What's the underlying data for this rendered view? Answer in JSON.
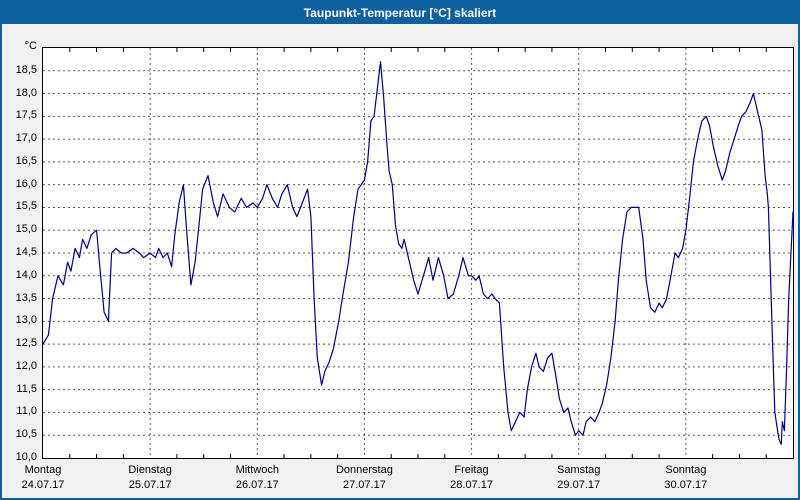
{
  "window": {
    "title": "Taupunkt-Temperatur [°C] skaliert"
  },
  "colors": {
    "titlebar": "#0e5f9e",
    "window_border": "#0e5f9e",
    "window_bg": "#f1f1f1",
    "plot_bg": "#ffffff",
    "plot_border": "#000000",
    "grid": "#5a5a5a",
    "line": "#000080"
  },
  "chart_data": {
    "type": "line",
    "title": "Taupunkt-Temperatur [°C] skaliert",
    "xlabel": "",
    "ylabel": "°C",
    "ylim": [
      10.0,
      19.0
    ],
    "x_range_days": [
      0,
      7
    ],
    "grid": true,
    "legend": "none",
    "y_ticks": [
      {
        "v": 18.5,
        "label": "18,5"
      },
      {
        "v": 18.0,
        "label": "18,0"
      },
      {
        "v": 17.5,
        "label": "17,5"
      },
      {
        "v": 17.0,
        "label": "17,0"
      },
      {
        "v": 16.5,
        "label": "16,5"
      },
      {
        "v": 16.0,
        "label": "16,0"
      },
      {
        "v": 15.5,
        "label": "15,5"
      },
      {
        "v": 15.0,
        "label": "15,0"
      },
      {
        "v": 14.5,
        "label": "14,5"
      },
      {
        "v": 14.0,
        "label": "14,0"
      },
      {
        "v": 13.5,
        "label": "13,5"
      },
      {
        "v": 13.0,
        "label": "13,0"
      },
      {
        "v": 12.5,
        "label": "12,5"
      },
      {
        "v": 12.0,
        "label": "12,0"
      },
      {
        "v": 11.5,
        "label": "11,5"
      },
      {
        "v": 11.0,
        "label": "11,0"
      },
      {
        "v": 10.5,
        "label": "10,5"
      },
      {
        "v": 10.0,
        "label": "10,0"
      }
    ],
    "x_days": [
      {
        "day": "Montag",
        "date": "24.07.17"
      },
      {
        "day": "Dienstag",
        "date": "25.07.17"
      },
      {
        "day": "Mittwoch",
        "date": "26.07.17"
      },
      {
        "day": "Donnerstag",
        "date": "27.07.17"
      },
      {
        "day": "Freitag",
        "date": "28.07.17"
      },
      {
        "day": "Samstag",
        "date": "29.07.17"
      },
      {
        "day": "Sonntag",
        "date": "30.07.17"
      }
    ],
    "series": [
      {
        "name": "Taupunkt-Temperatur",
        "color": "#000080",
        "points": [
          [
            0.0,
            12.5
          ],
          [
            0.05,
            12.7
          ],
          [
            0.09,
            13.5
          ],
          [
            0.14,
            14.0
          ],
          [
            0.19,
            13.8
          ],
          [
            0.23,
            14.3
          ],
          [
            0.26,
            14.1
          ],
          [
            0.3,
            14.6
          ],
          [
            0.34,
            14.4
          ],
          [
            0.37,
            14.8
          ],
          [
            0.41,
            14.6
          ],
          [
            0.45,
            14.9
          ],
          [
            0.5,
            15.0
          ],
          [
            0.53,
            14.2
          ],
          [
            0.57,
            13.2
          ],
          [
            0.61,
            13.0
          ],
          [
            0.64,
            14.5
          ],
          [
            0.68,
            14.6
          ],
          [
            0.73,
            14.5
          ],
          [
            0.78,
            14.5
          ],
          [
            0.84,
            14.6
          ],
          [
            0.9,
            14.5
          ],
          [
            0.94,
            14.4
          ],
          [
            1.0,
            14.5
          ],
          [
            1.05,
            14.4
          ],
          [
            1.08,
            14.6
          ],
          [
            1.12,
            14.4
          ],
          [
            1.16,
            14.5
          ],
          [
            1.2,
            14.2
          ],
          [
            1.23,
            14.9
          ],
          [
            1.27,
            15.6
          ],
          [
            1.31,
            16.0
          ],
          [
            1.34,
            15.0
          ],
          [
            1.38,
            13.8
          ],
          [
            1.42,
            14.3
          ],
          [
            1.46,
            15.2
          ],
          [
            1.49,
            15.9
          ],
          [
            1.54,
            16.2
          ],
          [
            1.59,
            15.6
          ],
          [
            1.63,
            15.3
          ],
          [
            1.68,
            15.8
          ],
          [
            1.74,
            15.5
          ],
          [
            1.79,
            15.4
          ],
          [
            1.85,
            15.7
          ],
          [
            1.9,
            15.5
          ],
          [
            1.96,
            15.6
          ],
          [
            2.0,
            15.5
          ],
          [
            2.05,
            15.7
          ],
          [
            2.09,
            16.0
          ],
          [
            2.14,
            15.7
          ],
          [
            2.19,
            15.5
          ],
          [
            2.23,
            15.8
          ],
          [
            2.28,
            16.0
          ],
          [
            2.33,
            15.5
          ],
          [
            2.37,
            15.3
          ],
          [
            2.42,
            15.6
          ],
          [
            2.47,
            15.9
          ],
          [
            2.5,
            15.3
          ],
          [
            2.53,
            13.5
          ],
          [
            2.56,
            12.2
          ],
          [
            2.6,
            11.6
          ],
          [
            2.63,
            11.9
          ],
          [
            2.67,
            12.1
          ],
          [
            2.71,
            12.4
          ],
          [
            2.76,
            13.0
          ],
          [
            2.8,
            13.6
          ],
          [
            2.85,
            14.3
          ],
          [
            2.9,
            15.3
          ],
          [
            2.94,
            15.9
          ],
          [
            2.97,
            16.0
          ],
          [
            3.0,
            16.1
          ],
          [
            3.03,
            16.5
          ],
          [
            3.06,
            17.4
          ],
          [
            3.09,
            17.5
          ],
          [
            3.12,
            18.1
          ],
          [
            3.15,
            18.7
          ],
          [
            3.18,
            17.9
          ],
          [
            3.21,
            16.9
          ],
          [
            3.23,
            16.3
          ],
          [
            3.26,
            16.0
          ],
          [
            3.29,
            15.1
          ],
          [
            3.32,
            14.7
          ],
          [
            3.35,
            14.6
          ],
          [
            3.37,
            14.8
          ],
          [
            3.41,
            14.4
          ],
          [
            3.46,
            13.9
          ],
          [
            3.5,
            13.6
          ],
          [
            3.55,
            14.0
          ],
          [
            3.6,
            14.4
          ],
          [
            3.64,
            13.9
          ],
          [
            3.69,
            14.4
          ],
          [
            3.74,
            14.0
          ],
          [
            3.78,
            13.5
          ],
          [
            3.83,
            13.6
          ],
          [
            3.88,
            14.0
          ],
          [
            3.92,
            14.4
          ],
          [
            3.97,
            14.0
          ],
          [
            4.0,
            14.0
          ],
          [
            4.04,
            13.9
          ],
          [
            4.07,
            14.0
          ],
          [
            4.11,
            13.6
          ],
          [
            4.15,
            13.5
          ],
          [
            4.19,
            13.6
          ],
          [
            4.22,
            13.5
          ],
          [
            4.26,
            13.4
          ],
          [
            4.3,
            12.0
          ],
          [
            4.34,
            11.0
          ],
          [
            4.37,
            10.6
          ],
          [
            4.41,
            10.8
          ],
          [
            4.45,
            11.0
          ],
          [
            4.49,
            10.9
          ],
          [
            4.52,
            11.5
          ],
          [
            4.56,
            12.0
          ],
          [
            4.6,
            12.3
          ],
          [
            4.63,
            12.0
          ],
          [
            4.67,
            11.9
          ],
          [
            4.71,
            12.2
          ],
          [
            4.75,
            12.3
          ],
          [
            4.78,
            11.9
          ],
          [
            4.82,
            11.3
          ],
          [
            4.86,
            11.0
          ],
          [
            4.9,
            11.1
          ],
          [
            4.93,
            10.8
          ],
          [
            4.97,
            10.5
          ],
          [
            5.0,
            10.6
          ],
          [
            5.04,
            10.5
          ],
          [
            5.07,
            10.8
          ],
          [
            5.11,
            10.9
          ],
          [
            5.15,
            10.8
          ],
          [
            5.19,
            11.0
          ],
          [
            5.22,
            11.2
          ],
          [
            5.26,
            11.6
          ],
          [
            5.3,
            12.2
          ],
          [
            5.34,
            13.0
          ],
          [
            5.37,
            13.9
          ],
          [
            5.41,
            14.8
          ],
          [
            5.45,
            15.4
          ],
          [
            5.49,
            15.5
          ],
          [
            5.52,
            15.5
          ],
          [
            5.56,
            15.5
          ],
          [
            5.6,
            14.8
          ],
          [
            5.63,
            13.9
          ],
          [
            5.67,
            13.3
          ],
          [
            5.71,
            13.2
          ],
          [
            5.75,
            13.4
          ],
          [
            5.78,
            13.3
          ],
          [
            5.82,
            13.5
          ],
          [
            5.86,
            14.0
          ],
          [
            5.9,
            14.5
          ],
          [
            5.93,
            14.4
          ],
          [
            5.97,
            14.6
          ],
          [
            6.0,
            15.0
          ],
          [
            6.04,
            15.8
          ],
          [
            6.07,
            16.5
          ],
          [
            6.11,
            17.0
          ],
          [
            6.15,
            17.4
          ],
          [
            6.19,
            17.5
          ],
          [
            6.22,
            17.3
          ],
          [
            6.26,
            16.8
          ],
          [
            6.3,
            16.4
          ],
          [
            6.34,
            16.1
          ],
          [
            6.37,
            16.3
          ],
          [
            6.41,
            16.7
          ],
          [
            6.45,
            17.0
          ],
          [
            6.49,
            17.3
          ],
          [
            6.52,
            17.5
          ],
          [
            6.56,
            17.6
          ],
          [
            6.6,
            17.8
          ],
          [
            6.63,
            18.0
          ],
          [
            6.67,
            17.6
          ],
          [
            6.71,
            17.2
          ],
          [
            6.74,
            16.2
          ],
          [
            6.76,
            15.8
          ],
          [
            6.77,
            15.5
          ],
          [
            6.79,
            14.0
          ],
          [
            6.81,
            12.5
          ],
          [
            6.83,
            11.0
          ],
          [
            6.85,
            10.7
          ],
          [
            6.87,
            10.4
          ],
          [
            6.89,
            10.3
          ],
          [
            6.9,
            10.8
          ],
          [
            6.92,
            10.6
          ],
          [
            6.94,
            12.0
          ],
          [
            6.96,
            13.5
          ],
          [
            7.0,
            15.4
          ]
        ]
      }
    ]
  }
}
